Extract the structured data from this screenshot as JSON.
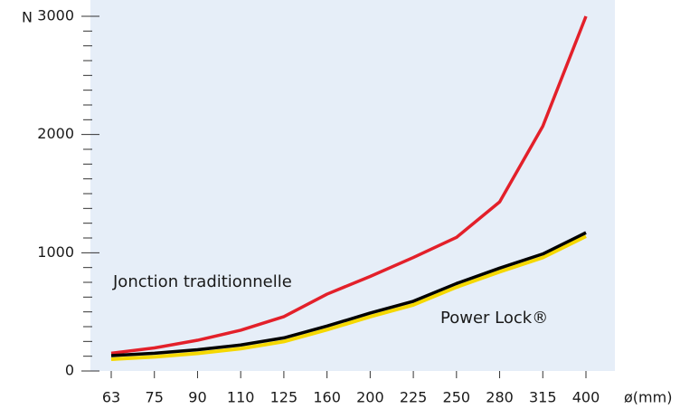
{
  "chart_data": {
    "type": "line",
    "ylabel": "N",
    "xlabel": "ø(mm)",
    "categories": [
      "63",
      "75",
      "90",
      "110",
      "125",
      "160",
      "200",
      "225",
      "250",
      "280",
      "315",
      "400"
    ],
    "series": [
      {
        "name": "Jonction traditionnelle",
        "color": "#e3202a",
        "values": [
          150,
          195,
          260,
          345,
          460,
          650,
          800,
          960,
          1130,
          1430,
          2070,
          3000
        ]
      },
      {
        "name": "Power Lock®",
        "color": "#000000",
        "underline_color": "#f5d800",
        "values": [
          130,
          150,
          180,
          220,
          280,
          380,
          490,
          590,
          740,
          870,
          990,
          1170
        ]
      }
    ],
    "ylim": [
      0,
      3000
    ],
    "yticks": [
      0,
      1000,
      2000,
      3000
    ],
    "background": "#e6eef8"
  }
}
